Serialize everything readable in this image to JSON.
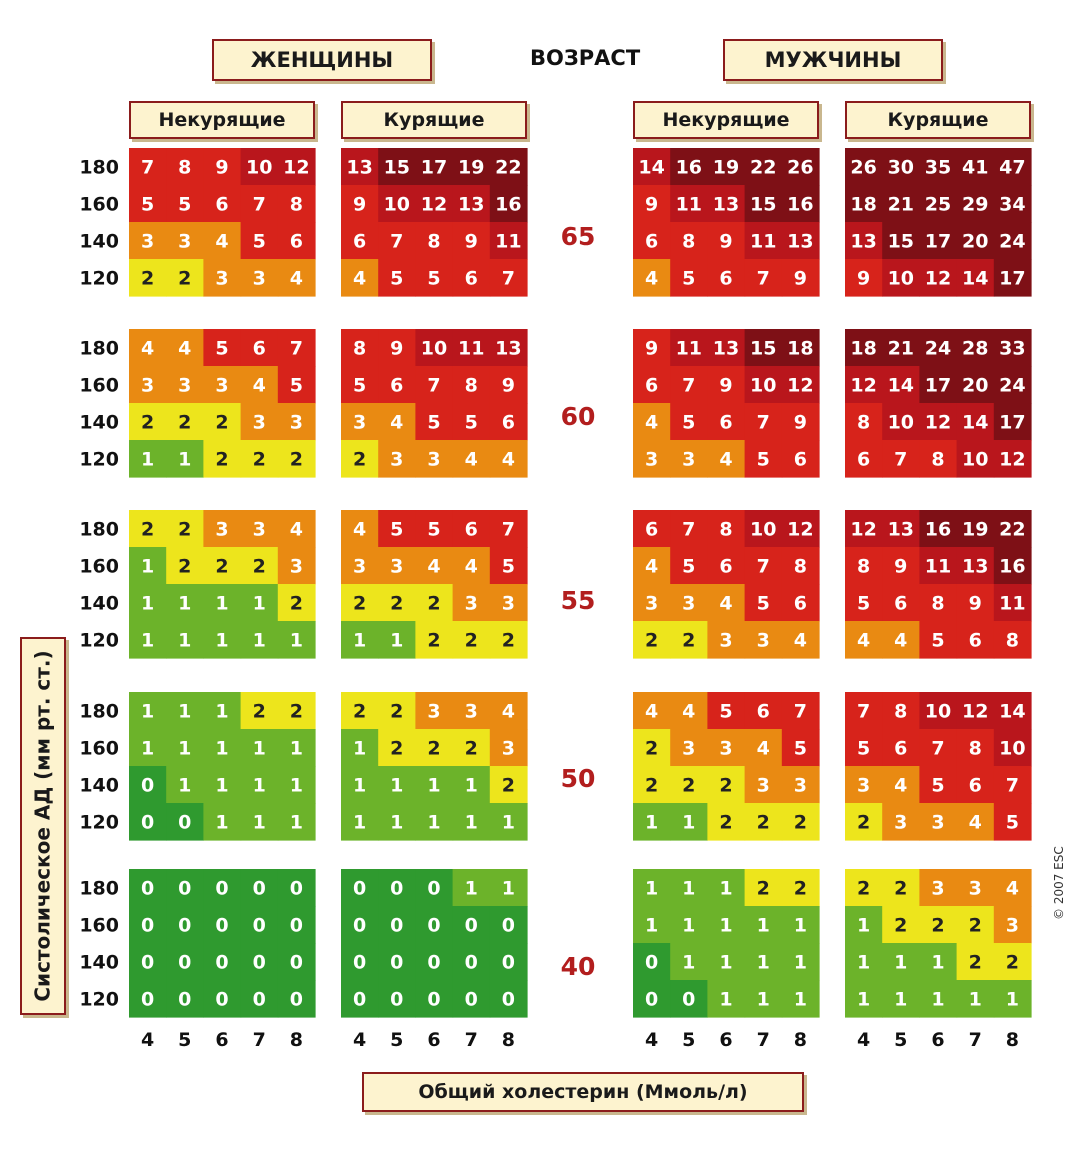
{
  "header": {
    "women_label": "ЖЕНЩИНЫ",
    "age_label": "ВОЗРАСТ",
    "men_label": "МУЖЧИНЫ"
  },
  "subheaders": {
    "nonsmokers": "Некурящие",
    "smokers": "Курящие"
  },
  "axis": {
    "ylabel": "Систолическое АД (мм рт. ст.)",
    "xlabel": "Общий холестерин (Ммоль/л)"
  },
  "copyright": "© 2007 ESC",
  "chart_data": {
    "type": "heatmap",
    "x": [
      4,
      5,
      6,
      7,
      8
    ],
    "y": [
      180,
      160,
      140,
      120
    ],
    "xlabel": "Общий холестерин (Ммоль/л)",
    "ylabel": "Систолическое АД (мм рт. ст.)",
    "colors": {
      "0": "#2f9a2f",
      "1": "#6cb32a",
      "2": "#ede51c",
      "3-4": "#e98a12",
      "5-9": "#d7231b",
      "10-14": "#b9161c",
      "15+": "#7e1016"
    },
    "ages": [
      65,
      60,
      55,
      50,
      40
    ],
    "panels": {
      "women_nonsmokers": [
        [
          [
            7,
            8,
            9,
            10,
            12
          ],
          [
            5,
            5,
            6,
            7,
            8
          ],
          [
            3,
            3,
            4,
            5,
            6
          ],
          [
            2,
            2,
            3,
            3,
            4
          ]
        ],
        [
          [
            4,
            4,
            5,
            6,
            7
          ],
          [
            3,
            3,
            3,
            4,
            5
          ],
          [
            2,
            2,
            2,
            3,
            3
          ],
          [
            1,
            1,
            2,
            2,
            2
          ]
        ],
        [
          [
            2,
            2,
            3,
            3,
            4
          ],
          [
            1,
            2,
            2,
            2,
            3
          ],
          [
            1,
            1,
            1,
            1,
            2
          ],
          [
            1,
            1,
            1,
            1,
            1
          ]
        ],
        [
          [
            1,
            1,
            1,
            2,
            2
          ],
          [
            1,
            1,
            1,
            1,
            1
          ],
          [
            0,
            1,
            1,
            1,
            1
          ],
          [
            0,
            0,
            1,
            1,
            1
          ]
        ],
        [
          [
            0,
            0,
            0,
            0,
            0
          ],
          [
            0,
            0,
            0,
            0,
            0
          ],
          [
            0,
            0,
            0,
            0,
            0
          ],
          [
            0,
            0,
            0,
            0,
            0
          ]
        ]
      ],
      "women_smokers": [
        [
          [
            13,
            15,
            17,
            19,
            22
          ],
          [
            9,
            10,
            12,
            13,
            16
          ],
          [
            6,
            7,
            8,
            9,
            11
          ],
          [
            4,
            5,
            5,
            6,
            7
          ]
        ],
        [
          [
            8,
            9,
            10,
            11,
            13
          ],
          [
            5,
            6,
            7,
            8,
            9
          ],
          [
            3,
            4,
            5,
            5,
            6
          ],
          [
            2,
            3,
            3,
            4,
            4
          ]
        ],
        [
          [
            4,
            5,
            5,
            6,
            7
          ],
          [
            3,
            3,
            4,
            4,
            5
          ],
          [
            2,
            2,
            2,
            3,
            3
          ],
          [
            1,
            1,
            2,
            2,
            2
          ]
        ],
        [
          [
            2,
            2,
            3,
            3,
            4
          ],
          [
            1,
            2,
            2,
            2,
            3
          ],
          [
            1,
            1,
            1,
            1,
            2
          ],
          [
            1,
            1,
            1,
            1,
            1
          ]
        ],
        [
          [
            0,
            0,
            0,
            1,
            1
          ],
          [
            0,
            0,
            0,
            0,
            0
          ],
          [
            0,
            0,
            0,
            0,
            0
          ],
          [
            0,
            0,
            0,
            0,
            0
          ]
        ]
      ],
      "men_nonsmokers": [
        [
          [
            14,
            16,
            19,
            22,
            26
          ],
          [
            9,
            11,
            13,
            15,
            16
          ],
          [
            6,
            8,
            9,
            11,
            13
          ],
          [
            4,
            5,
            6,
            7,
            9
          ]
        ],
        [
          [
            9,
            11,
            13,
            15,
            18
          ],
          [
            6,
            7,
            9,
            10,
            12
          ],
          [
            4,
            5,
            6,
            7,
            9
          ],
          [
            3,
            3,
            4,
            5,
            6
          ]
        ],
        [
          [
            6,
            7,
            8,
            10,
            12
          ],
          [
            4,
            5,
            6,
            7,
            8
          ],
          [
            3,
            3,
            4,
            5,
            6
          ],
          [
            2,
            2,
            3,
            3,
            4
          ]
        ],
        [
          [
            4,
            4,
            5,
            6,
            7
          ],
          [
            2,
            3,
            3,
            4,
            5
          ],
          [
            2,
            2,
            2,
            3,
            3
          ],
          [
            1,
            1,
            2,
            2,
            2
          ]
        ],
        [
          [
            1,
            1,
            1,
            2,
            2
          ],
          [
            1,
            1,
            1,
            1,
            1
          ],
          [
            0,
            1,
            1,
            1,
            1
          ],
          [
            0,
            0,
            1,
            1,
            1
          ]
        ]
      ],
      "men_smokers": [
        [
          [
            26,
            30,
            35,
            41,
            47
          ],
          [
            18,
            21,
            25,
            29,
            34
          ],
          [
            13,
            15,
            17,
            20,
            24
          ],
          [
            9,
            10,
            12,
            14,
            17
          ]
        ],
        [
          [
            18,
            21,
            24,
            28,
            33
          ],
          [
            12,
            14,
            17,
            20,
            24
          ],
          [
            8,
            10,
            12,
            14,
            17
          ],
          [
            6,
            7,
            8,
            10,
            12
          ]
        ],
        [
          [
            12,
            13,
            16,
            19,
            22
          ],
          [
            8,
            9,
            11,
            13,
            16
          ],
          [
            5,
            6,
            8,
            9,
            11
          ],
          [
            4,
            4,
            5,
            6,
            8
          ]
        ],
        [
          [
            7,
            8,
            10,
            12,
            14
          ],
          [
            5,
            6,
            7,
            8,
            10
          ],
          [
            3,
            4,
            5,
            6,
            7
          ],
          [
            2,
            3,
            3,
            4,
            5
          ]
        ],
        [
          [
            2,
            2,
            3,
            3,
            4
          ],
          [
            1,
            2,
            2,
            2,
            3
          ],
          [
            1,
            1,
            1,
            2,
            2
          ],
          [
            1,
            1,
            1,
            1,
            1
          ]
        ]
      ]
    }
  }
}
